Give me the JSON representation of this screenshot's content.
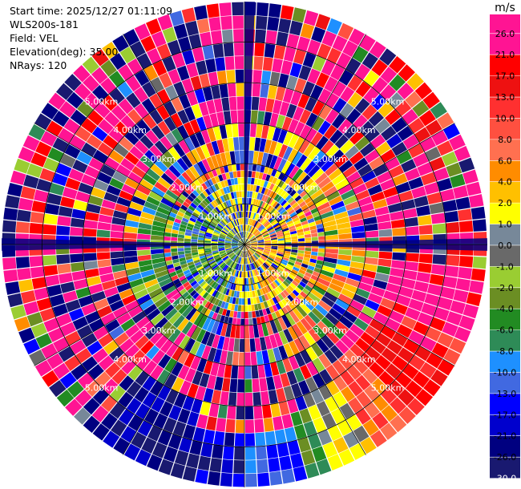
{
  "header": {
    "start_time": "Start time: 2025/12/27 01:11:09",
    "instrument": "WLS200s-181",
    "field": "Field: VEL",
    "elevation": "Elevation(deg): 35.00",
    "nrays": "NRays: 120"
  },
  "chart_data": {
    "type": "heatmap",
    "subtype": "polar-ppi",
    "field": "VEL",
    "elevation_deg": 35.0,
    "n_rays": 120,
    "range_max_km": 6.0,
    "range_rings_km": [
      1,
      2,
      3,
      4,
      5
    ],
    "range_ring_labels": [
      "1.00km",
      "2.00km",
      "3.00km",
      "4.00km",
      "5.00km"
    ],
    "colorbar": {
      "unit": "m/s",
      "ticks": [
        "26.0",
        "21.0",
        "17.0",
        "13.0",
        "10.0",
        "8.0",
        "6.0",
        "4.0",
        "2.0",
        "1.0",
        "0.0",
        "-1.0",
        "-2.0",
        "-4.0",
        "-6.0",
        "-8.0",
        "-10.0",
        "-13.0",
        "-17.0",
        "-21.0",
        "-26.0",
        "-30.0"
      ],
      "colors": [
        "#ff1493",
        "#ff0000",
        "#ee1111",
        "#ff3030",
        "#ff5040",
        "#ff7050",
        "#ff8c00",
        "#ffc000",
        "#ffff00",
        "#778899",
        "#696969",
        "#9acd32",
        "#6b8e23",
        "#228b22",
        "#2e8b57",
        "#1e90ff",
        "#4169e1",
        "#0000ff",
        "#0000cd",
        "#000080",
        "#191970"
      ]
    },
    "notable_regions": [
      {
        "azimuth_deg": [
          95,
          110
        ],
        "range_km": [
          3.5,
          6
        ],
        "velocity": "21 to 26"
      },
      {
        "azimuth_deg": [
          118,
          150
        ],
        "range_km": [
          3.5,
          6
        ],
        "velocity": "8 to 21"
      },
      {
        "azimuth_deg": [
          148,
          165
        ],
        "range_km": [
          4,
          6
        ],
        "velocity": "-10 to 4"
      },
      {
        "azimuth_deg": [
          165,
          195
        ],
        "range_km": [
          4.5,
          6
        ],
        "velocity": "-26 to -13"
      },
      {
        "azimuth_deg": [
          0,
          5
        ],
        "range_km": [
          0,
          6
        ],
        "velocity": "-30"
      },
      {
        "azimuth_deg": [
          270,
          275
        ],
        "range_km": [
          0,
          6
        ],
        "velocity": "-30"
      }
    ]
  }
}
